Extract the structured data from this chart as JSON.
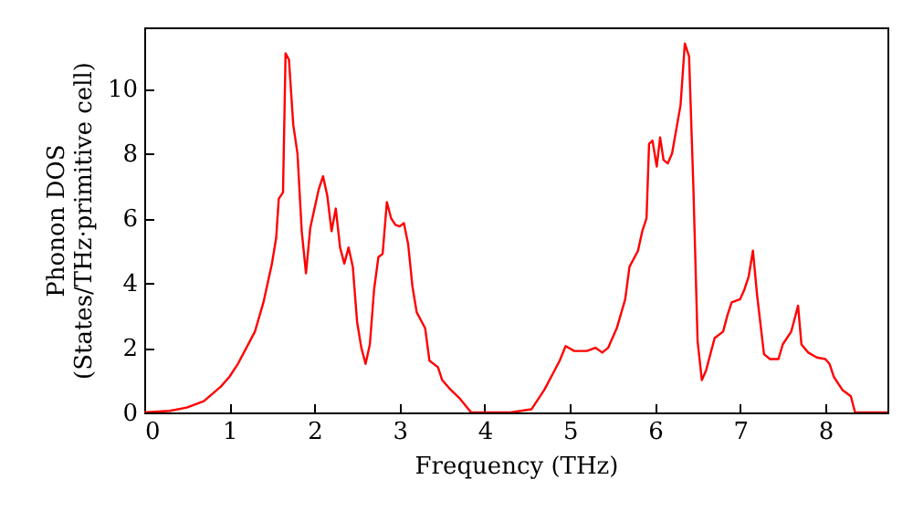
{
  "chart_data": {
    "type": "line",
    "xlabel": "Frequency (THz)",
    "ylabel": "Phonon DOS\n(States/THz·primitive cell)",
    "xlim": [
      0,
      8.73
    ],
    "ylim": [
      0,
      11.9
    ],
    "xticks": [
      0,
      1,
      2,
      3,
      4,
      5,
      6,
      7,
      8
    ],
    "yticks": [
      0,
      2,
      4,
      6,
      8,
      10
    ],
    "grid": false,
    "line_style": "solid",
    "marker": "none",
    "series": [
      {
        "color": "#ff0000",
        "x": [
          0,
          0.3,
          0.5,
          0.7,
          0.9,
          1.0,
          1.1,
          1.2,
          1.3,
          1.4,
          1.5,
          1.55,
          1.58,
          1.63,
          1.66,
          1.7,
          1.75,
          1.8,
          1.85,
          1.9,
          1.95,
          2.05,
          2.1,
          2.15,
          2.2,
          2.25,
          2.3,
          2.35,
          2.4,
          2.45,
          2.5,
          2.55,
          2.6,
          2.65,
          2.7,
          2.75,
          2.8,
          2.85,
          2.9,
          2.95,
          3.0,
          3.05,
          3.1,
          3.15,
          3.2,
          3.3,
          3.35,
          3.45,
          3.5,
          3.6,
          3.7,
          3.84,
          4.0,
          4.3,
          4.55,
          4.7,
          4.8,
          4.88,
          4.95,
          5.05,
          5.2,
          5.3,
          5.38,
          5.45,
          5.55,
          5.65,
          5.7,
          5.8,
          5.85,
          5.9,
          5.93,
          5.97,
          6.02,
          6.06,
          6.1,
          6.15,
          6.2,
          6.3,
          6.35,
          6.4,
          6.45,
          6.5,
          6.55,
          6.6,
          6.65,
          6.7,
          6.8,
          6.85,
          6.9,
          7.0,
          7.05,
          7.1,
          7.15,
          7.2,
          7.28,
          7.35,
          7.45,
          7.5,
          7.6,
          7.68,
          7.72,
          7.8,
          7.9,
          8.0,
          8.05,
          8.1,
          8.2,
          8.3,
          8.35,
          8.73
        ],
        "values": [
          0,
          0.05,
          0.15,
          0.35,
          0.8,
          1.1,
          1.5,
          2.0,
          2.5,
          3.4,
          4.6,
          5.4,
          6.6,
          6.8,
          11.1,
          10.9,
          8.9,
          8.0,
          5.6,
          4.3,
          5.7,
          6.9,
          7.3,
          6.7,
          5.6,
          6.3,
          5.1,
          4.6,
          5.1,
          4.5,
          2.8,
          2.0,
          1.5,
          2.1,
          3.8,
          4.8,
          4.9,
          6.5,
          6.0,
          5.8,
          5.75,
          5.85,
          5.2,
          3.9,
          3.1,
          2.6,
          1.6,
          1.4,
          1.0,
          0.7,
          0.45,
          0,
          0,
          0,
          0.1,
          0.7,
          1.2,
          1.6,
          2.05,
          1.9,
          1.9,
          2.0,
          1.85,
          2.0,
          2.6,
          3.5,
          4.5,
          5.0,
          5.6,
          6.0,
          8.3,
          8.4,
          7.6,
          8.5,
          7.8,
          7.7,
          8.0,
          9.5,
          11.4,
          11.0,
          7.0,
          2.2,
          1.0,
          1.3,
          1.8,
          2.3,
          2.5,
          3.0,
          3.4,
          3.5,
          3.8,
          4.2,
          5.0,
          3.6,
          1.8,
          1.65,
          1.65,
          2.1,
          2.5,
          3.3,
          2.1,
          1.85,
          1.7,
          1.65,
          1.5,
          1.1,
          0.7,
          0.5,
          0,
          0
        ]
      }
    ]
  }
}
